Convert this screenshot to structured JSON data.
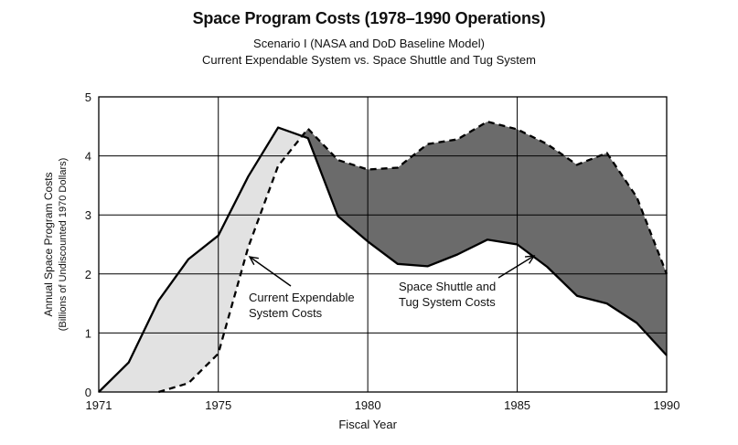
{
  "chart_data": {
    "type": "line",
    "title": "Space Program Costs (1978–1990 Operations)",
    "subtitle": [
      "Scenario I (NASA and DoD Baseline Model)",
      "Current Expendable System vs. Space Shuttle and Tug System"
    ],
    "xlabel": "Fiscal Year",
    "ylabel": [
      "Annual Space Program Costs",
      "(Billions of Undiscounted 1970 Dollars)"
    ],
    "xlim": [
      1971,
      1990
    ],
    "ylim": [
      0,
      5
    ],
    "x_ticks": [
      "1971",
      "1975",
      "1980",
      "1985",
      "1990"
    ],
    "x_tick_values": [
      1971,
      1975,
      1980,
      1985,
      1990
    ],
    "y_ticks": [
      "0",
      "1",
      "2",
      "3",
      "4",
      "5"
    ],
    "grid": true,
    "series": [
      {
        "name": "Space Shuttle and Tug System Costs",
        "style": "solid",
        "points": [
          [
            1971,
            0
          ],
          [
            1972,
            0.5
          ],
          [
            1973,
            1.55
          ],
          [
            1974,
            2.25
          ],
          [
            1975,
            2.65
          ],
          [
            1976,
            3.65
          ],
          [
            1977,
            4.48
          ],
          [
            1978,
            4.3
          ],
          [
            1979,
            2.98
          ],
          [
            1980,
            2.55
          ],
          [
            1981,
            2.17
          ],
          [
            1982,
            2.13
          ],
          [
            1983,
            2.33
          ],
          [
            1984,
            2.58
          ],
          [
            1985,
            2.5
          ],
          [
            1986,
            2.12
          ],
          [
            1987,
            1.63
          ],
          [
            1988,
            1.5
          ],
          [
            1989,
            1.17
          ],
          [
            1990,
            0.62
          ]
        ]
      },
      {
        "name": "Current Expendable System Costs",
        "style": "dashed",
        "points": [
          [
            1973,
            0
          ],
          [
            1974,
            0.15
          ],
          [
            1975,
            0.65
          ],
          [
            1976,
            2.45
          ],
          [
            1977,
            3.83
          ],
          [
            1978,
            4.46
          ],
          [
            1979,
            3.93
          ],
          [
            1980,
            3.77
          ],
          [
            1981,
            3.8
          ],
          [
            1982,
            4.2
          ],
          [
            1983,
            4.28
          ],
          [
            1984,
            4.58
          ],
          [
            1985,
            4.45
          ],
          [
            1986,
            4.2
          ],
          [
            1987,
            3.85
          ],
          [
            1988,
            4.05
          ],
          [
            1989,
            3.3
          ],
          [
            1990,
            2.0
          ]
        ]
      }
    ],
    "annotations": [
      {
        "text": [
          "Current Expendable",
          "System Costs"
        ],
        "target_series": "Current Expendable System Costs"
      },
      {
        "text": [
          "Space Shuttle and",
          "Tug System Costs"
        ],
        "target_series": "Space Shuttle and Tug System Costs"
      }
    ],
    "colors": {
      "light_fill": "#e2e2e2",
      "dark_fill": "#6b6b6b",
      "line": "#000000",
      "grid": "#000000"
    }
  }
}
